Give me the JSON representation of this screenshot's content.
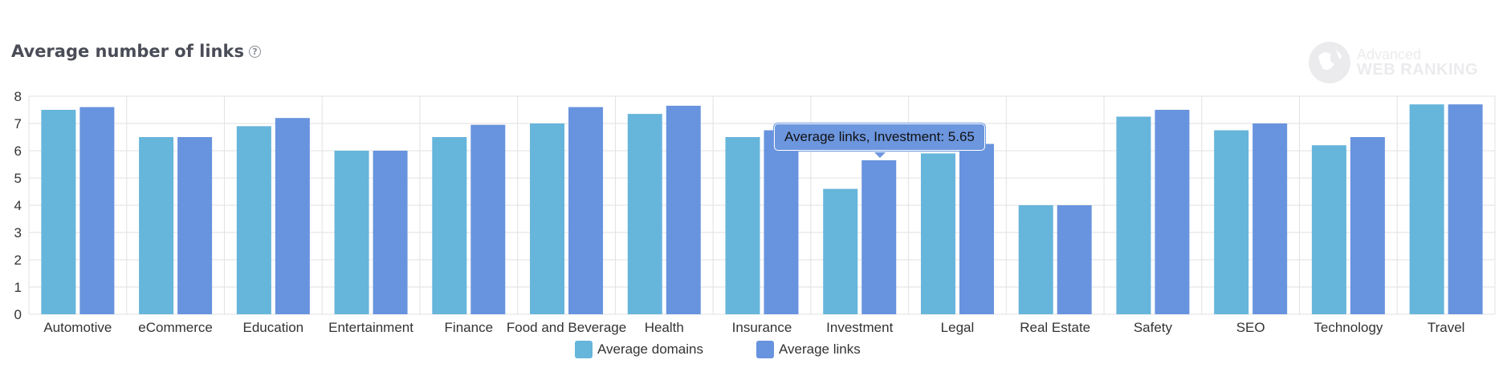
{
  "header": {
    "title": "Average number of links",
    "help_icon": "question-circle-icon"
  },
  "watermark": {
    "line1": "Advanced",
    "line2": "WEB RANKING",
    "icon": "globe-logo-icon"
  },
  "tooltip": {
    "text": "Average links, Investment: 5.65"
  },
  "colors": {
    "domains": "#66b5db",
    "links": "#6893de",
    "grid": "#e2e2e2"
  },
  "chart_data": {
    "type": "bar",
    "title": "Average number of links",
    "categories": [
      "Automotive",
      "eCommerce",
      "Education",
      "Entertainment",
      "Finance",
      "Food and Beverage",
      "Health",
      "Insurance",
      "Investment",
      "Legal",
      "Real Estate",
      "Safety",
      "SEO",
      "Technology",
      "Travel"
    ],
    "series": [
      {
        "name": "Average domains",
        "values": [
          7.5,
          6.5,
          6.9,
          6.0,
          6.5,
          7.0,
          7.35,
          6.5,
          4.6,
          5.9,
          4.0,
          7.25,
          6.75,
          6.2,
          7.7
        ]
      },
      {
        "name": "Average links",
        "values": [
          7.6,
          6.5,
          7.2,
          6.0,
          6.95,
          7.6,
          7.65,
          6.75,
          5.65,
          6.25,
          4.0,
          7.5,
          7.0,
          6.5,
          7.7
        ]
      }
    ],
    "ylim": [
      0,
      8
    ],
    "yticks": [
      "0",
      "1",
      "2",
      "3",
      "4",
      "5",
      "6",
      "7",
      "8"
    ],
    "xlabel": "",
    "ylabel": "",
    "grid": true,
    "legend": "bottom-center"
  }
}
